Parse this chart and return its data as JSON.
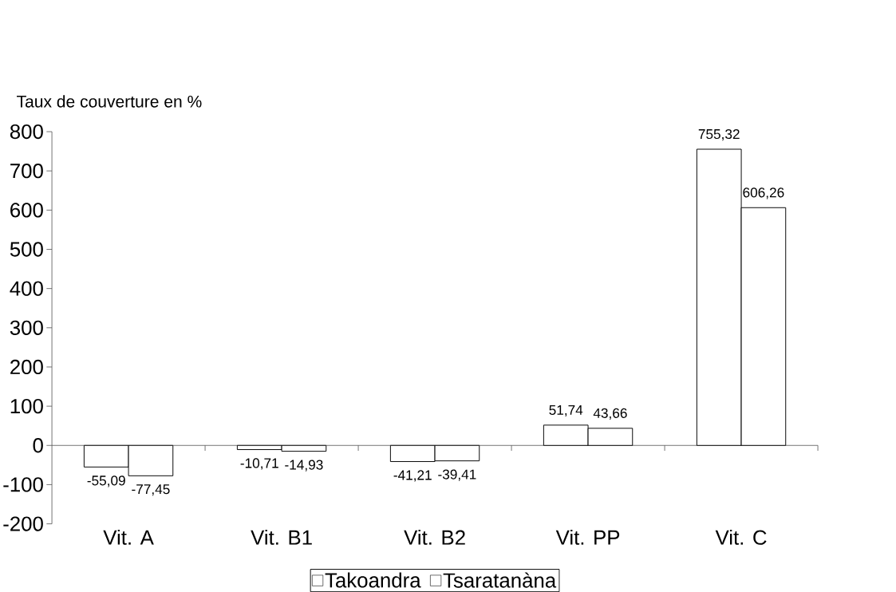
{
  "chart_data": {
    "type": "bar",
    "ylabel": "Taux de couverture en %",
    "categories": [
      "Vit. A",
      "Vit. B1",
      "Vit. B2",
      "Vit. PP",
      "Vit. C"
    ],
    "series": [
      {
        "name": "Takoandra",
        "color": "#ffffff",
        "values": [
          -55.09,
          -10.71,
          -41.21,
          51.74,
          755.32
        ],
        "value_labels": [
          "-55,09",
          "-10,71",
          "-41,21",
          "51,74",
          "755,32"
        ]
      },
      {
        "name": "Tsaratanàna",
        "color": "#ffffff",
        "values": [
          -77.45,
          -14.93,
          -39.41,
          43.66,
          606.26
        ],
        "value_labels": [
          "-77,45",
          "-14,93",
          "-39,41",
          "43,66",
          "606,26"
        ]
      }
    ],
    "ylim": [
      -200,
      800
    ],
    "yticks": [
      -200,
      -100,
      0,
      100,
      200,
      300,
      400,
      500,
      600,
      700,
      800
    ],
    "legend": "bottom"
  }
}
